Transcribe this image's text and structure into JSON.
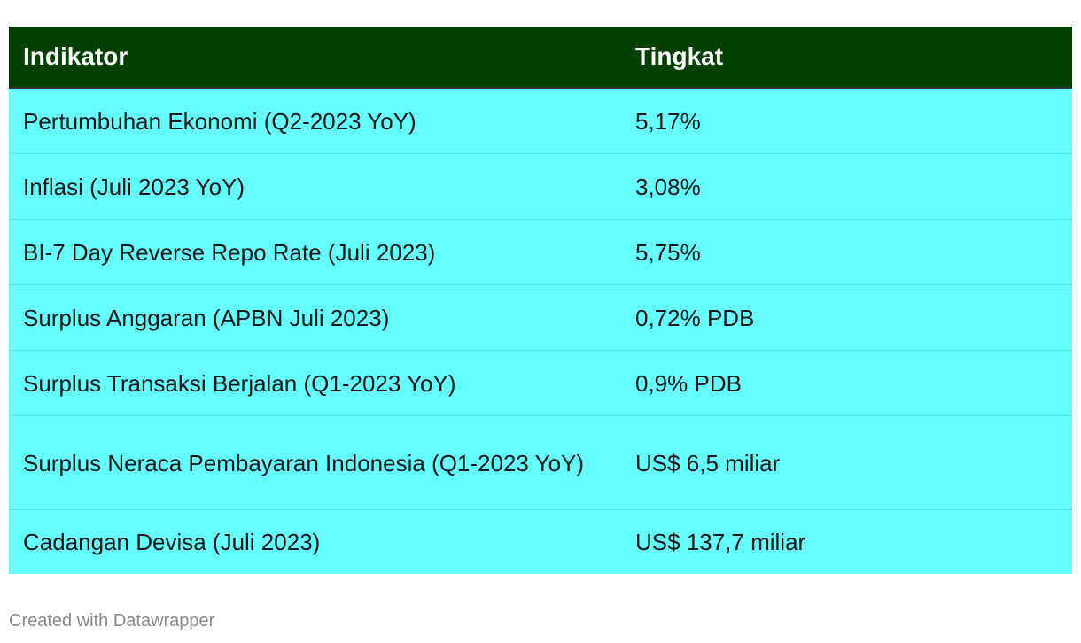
{
  "table": {
    "headers": [
      "Indikator",
      "Tingkat"
    ],
    "rows": [
      [
        "Pertumbuhan Ekonomi (Q2-2023 YoY)",
        "5,17%"
      ],
      [
        "Inflasi (Juli 2023 YoY)",
        "3,08%"
      ],
      [
        "BI-7 Day Reverse Repo Rate (Juli 2023)",
        "5,75%"
      ],
      [
        "Surplus Anggaran (APBN Juli 2023)",
        "0,72% PDB"
      ],
      [
        "Surplus Transaksi Berjalan (Q1-2023 YoY)",
        "0,9% PDB"
      ],
      [
        "Surplus Neraca Pembayaran Indonesia (Q1-2023 YoY)",
        "US$ 6,5 miliar"
      ],
      [
        "Cadangan Devisa (Juli 2023)",
        "US$ 137,7 miliar"
      ]
    ],
    "header_bg": "#034001",
    "row_bg": "#66ffff"
  },
  "footer": {
    "credit": "Created with Datawrapper"
  }
}
